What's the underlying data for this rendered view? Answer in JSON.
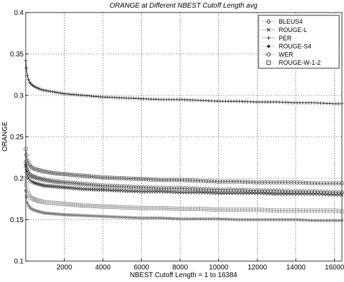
{
  "chart_data": {
    "type": "line",
    "title": "ORANGE at Different NBEST Cutoff Length avg",
    "xlabel": "NBEST Cutoff Length = 1 to 16384",
    "ylabel": "ORANGE",
    "xlim": [
      1,
      16384
    ],
    "ylim": [
      0.1,
      0.4
    ],
    "xticks": [
      2000,
      4000,
      6000,
      8000,
      10000,
      12000,
      14000,
      16000
    ],
    "yticks": [
      0.1,
      0.15,
      0.2,
      0.25,
      0.3,
      0.35,
      0.4
    ],
    "grid": true,
    "legend_position": "top-right",
    "x": [
      1,
      50,
      100,
      200,
      300,
      500,
      800,
      1000,
      1500,
      2000,
      3000,
      4000,
      5000,
      6000,
      7000,
      8000,
      9000,
      10000,
      11000,
      12000,
      13000,
      14000,
      15000,
      16000,
      16384
    ],
    "series": [
      {
        "name": "BLEUS4",
        "marker": "diamond",
        "color": "#4d4d4d",
        "values": [
          0.22,
          0.214,
          0.209,
          0.205,
          0.203,
          0.201,
          0.199,
          0.198,
          0.196,
          0.195,
          0.193,
          0.191,
          0.19,
          0.189,
          0.188,
          0.188,
          0.187,
          0.186,
          0.186,
          0.185,
          0.185,
          0.184,
          0.184,
          0.183,
          0.183
        ]
      },
      {
        "name": "ROUGE-L",
        "marker": "x",
        "color": "#333333",
        "values": [
          0.215,
          0.207,
          0.202,
          0.198,
          0.196,
          0.194,
          0.192,
          0.191,
          0.19,
          0.189,
          0.187,
          0.186,
          0.185,
          0.184,
          0.184,
          0.183,
          0.183,
          0.182,
          0.182,
          0.182,
          0.181,
          0.181,
          0.181,
          0.18,
          0.18
        ]
      },
      {
        "name": "PER",
        "marker": "plus",
        "color": "#222222",
        "values": [
          0.342,
          0.33,
          0.322,
          0.316,
          0.313,
          0.31,
          0.307,
          0.306,
          0.304,
          0.302,
          0.3,
          0.298,
          0.297,
          0.296,
          0.295,
          0.295,
          0.294,
          0.293,
          0.293,
          0.292,
          0.292,
          0.291,
          0.291,
          0.29,
          0.29
        ]
      },
      {
        "name": "ROUGE-S4",
        "marker": "star",
        "color": "#7a7a7a",
        "values": [
          0.185,
          0.175,
          0.169,
          0.165,
          0.163,
          0.161,
          0.159,
          0.158,
          0.157,
          0.156,
          0.155,
          0.154,
          0.153,
          0.152,
          0.152,
          0.151,
          0.151,
          0.151,
          0.15,
          0.15,
          0.15,
          0.15,
          0.149,
          0.149,
          0.149
        ]
      },
      {
        "name": "WER",
        "marker": "circle",
        "color": "#555555",
        "values": [
          0.235,
          0.226,
          0.22,
          0.216,
          0.213,
          0.211,
          0.209,
          0.208,
          0.206,
          0.205,
          0.203,
          0.201,
          0.2,
          0.199,
          0.198,
          0.198,
          0.197,
          0.196,
          0.196,
          0.195,
          0.195,
          0.195,
          0.194,
          0.194,
          0.194
        ]
      },
      {
        "name": "ROUGE-W-1-2",
        "marker": "square",
        "color": "#9a9a9a",
        "values": [
          0.2,
          0.19,
          0.184,
          0.179,
          0.176,
          0.174,
          0.172,
          0.171,
          0.17,
          0.169,
          0.167,
          0.166,
          0.165,
          0.164,
          0.164,
          0.163,
          0.163,
          0.162,
          0.162,
          0.162,
          0.161,
          0.161,
          0.161,
          0.161,
          0.16
        ]
      }
    ]
  }
}
